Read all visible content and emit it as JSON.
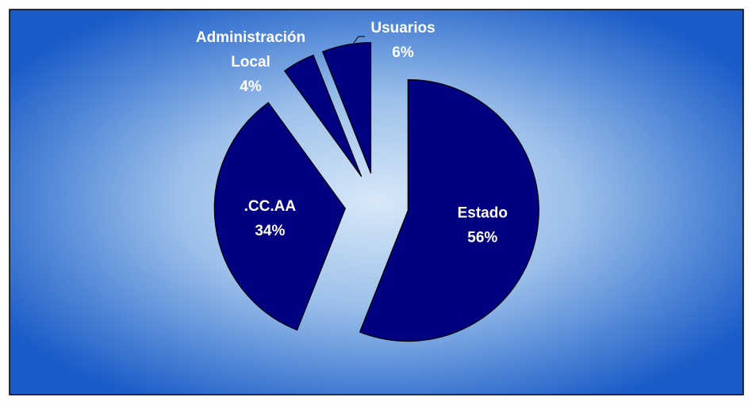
{
  "chart_data": {
    "type": "pie",
    "categories": [
      "Estado",
      ".CC.AA",
      "Administración Local",
      "Usuarios"
    ],
    "values": [
      56,
      34,
      4,
      6
    ],
    "value_labels": [
      "56%",
      "34%",
      "4%",
      "6%"
    ],
    "color": "#000080"
  }
}
